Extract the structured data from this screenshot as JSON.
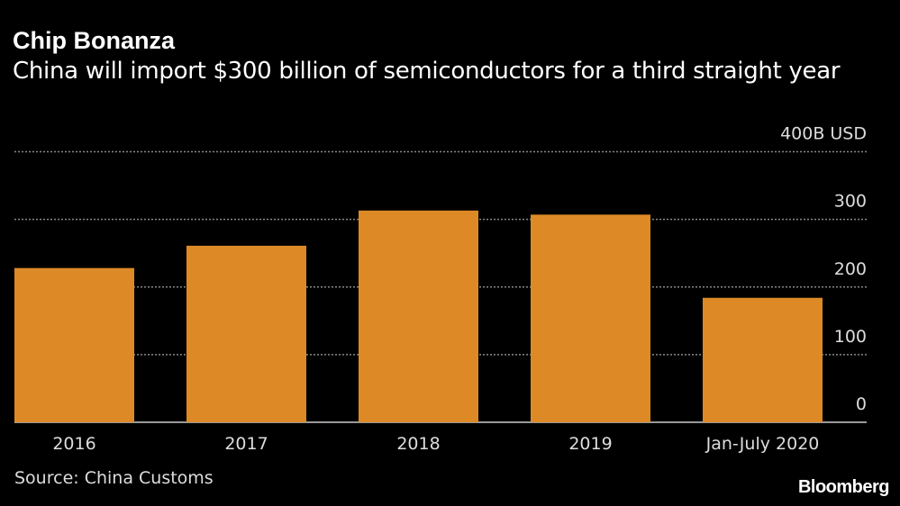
{
  "chart_data": {
    "type": "bar",
    "title": "Chip Bonanza",
    "subtitle": "China will import $300 billion of semiconductors for a third straight year",
    "categories": [
      "2016",
      "2017",
      "2018",
      "2019",
      "Jan-July 2020"
    ],
    "values": [
      228,
      261,
      313,
      307,
      184
    ],
    "unit": "B USD",
    "ylim": [
      0,
      400
    ],
    "yticks": [
      0,
      100,
      200,
      300,
      400
    ],
    "ytick_labels": [
      "0",
      "100",
      "200",
      "300",
      "400B USD"
    ],
    "grid": true,
    "bar_color": "#dd8a26",
    "source": "Source: China Customs"
  },
  "branding": {
    "logo": "Bloomberg"
  }
}
